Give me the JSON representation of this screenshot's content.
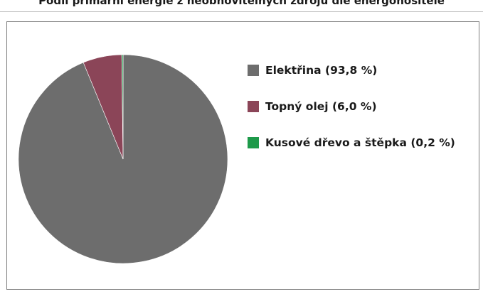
{
  "header": {
    "title": "Podíl primární energie z neobnovitelných zdrojů dle energonositele"
  },
  "chart_data": {
    "type": "pie",
    "title": "Podíl primární energie z neobnovitelných zdrojů dle energonositele",
    "categories": [
      "Elektřina",
      "Topný olej",
      "Kusové dřevo a štěpka"
    ],
    "values": [
      93.8,
      6.0,
      0.2
    ],
    "colors": [
      "#6d6d6d",
      "#8b4558",
      "#1e9a4a"
    ],
    "legend_position": "right",
    "legend": [
      {
        "label": "Elektřina (93,8 %)",
        "color": "#6d6d6d"
      },
      {
        "label": "Topný olej (6,0 %)",
        "color": "#8b4558"
      },
      {
        "label": "Kusové dřevo a štěpka (0,2 %)",
        "color": "#1e9a4a"
      }
    ]
  }
}
